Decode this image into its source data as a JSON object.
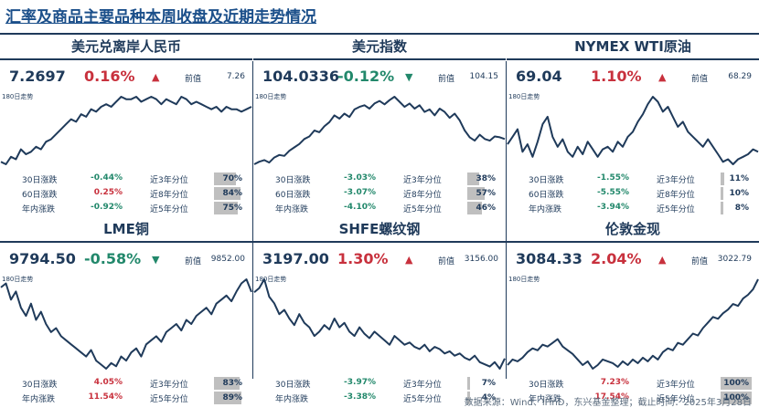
{
  "title": "汇率及商品主要品种本周收盘及近期走势情况",
  "source": "数据来源：Wind、iFinD，东兴基金整理；截止时间：2025年3月28日",
  "colors": {
    "up": "#c8313d",
    "down": "#22886b",
    "line": "#1f3a5a",
    "bar": "#bfbfbf"
  },
  "chart_data": [
    {
      "type": "line",
      "title": "美元兑离岸人民币",
      "last": "7.2697",
      "change": "0.16%",
      "direction": "up",
      "arrow": "▲",
      "prev_label": "前值",
      "prev_value": "7.26",
      "trend_label": "180日走势",
      "values": [
        7.05,
        7.04,
        7.07,
        7.06,
        7.1,
        7.08,
        7.09,
        7.11,
        7.1,
        7.13,
        7.14,
        7.16,
        7.18,
        7.2,
        7.22,
        7.21,
        7.24,
        7.23,
        7.26,
        7.25,
        7.27,
        7.28,
        7.27,
        7.29,
        7.31,
        7.3,
        7.3,
        7.31,
        7.29,
        7.3,
        7.31,
        7.3,
        7.28,
        7.3,
        7.29,
        7.28,
        7.31,
        7.3,
        7.28,
        7.29,
        7.28,
        7.27,
        7.26,
        7.27,
        7.25,
        7.27,
        7.26,
        7.26,
        7.25,
        7.26,
        7.27
      ],
      "stats": [
        {
          "label": "30日涨跌",
          "value": "-0.44%",
          "direction": "down",
          "pct_label": "近3年分位",
          "pct": "70%",
          "pct_num": 70
        },
        {
          "label": "60日涨跌",
          "value": "0.25%",
          "direction": "up",
          "pct_label": "近8年分位",
          "pct": "84%",
          "pct_num": 84
        },
        {
          "label": "年内涨跌",
          "value": "-0.92%",
          "direction": "down",
          "pct_label": "近5年分位",
          "pct": "75%",
          "pct_num": 75
        }
      ]
    },
    {
      "type": "line",
      "title": "美元指数",
      "last": "104.0336",
      "change": "-0.12%",
      "direction": "down",
      "arrow": "▼",
      "prev_label": "前值",
      "prev_value": "104.15",
      "trend_label": "180日走势",
      "values": [
        101.0,
        101.3,
        101.5,
        101.2,
        101.8,
        102.1,
        102.0,
        102.6,
        103.0,
        103.4,
        104.0,
        104.3,
        105.0,
        104.8,
        105.5,
        106.0,
        106.8,
        106.4,
        107.0,
        106.6,
        107.5,
        107.8,
        108.0,
        107.6,
        108.2,
        108.5,
        108.1,
        108.6,
        109.0,
        108.4,
        107.8,
        108.2,
        107.6,
        108.0,
        107.2,
        107.5,
        106.8,
        107.6,
        107.2,
        106.5,
        107.0,
        106.2,
        105.0,
        104.2,
        103.8,
        104.5,
        104.0,
        103.8,
        104.3,
        104.2,
        104.0
      ],
      "stats": [
        {
          "label": "30日涨跌",
          "value": "-3.03%",
          "direction": "down",
          "pct_label": "近3年分位",
          "pct": "38%",
          "pct_num": 38
        },
        {
          "label": "60日涨跌",
          "value": "-3.07%",
          "direction": "down",
          "pct_label": "近8年分位",
          "pct": "57%",
          "pct_num": 57
        },
        {
          "label": "年内涨跌",
          "value": "-4.10%",
          "direction": "down",
          "pct_label": "近5年分位",
          "pct": "46%",
          "pct_num": 46
        }
      ]
    },
    {
      "type": "line",
      "title": "NYMEX WTI原油",
      "last": "69.04",
      "change": "1.10%",
      "direction": "up",
      "arrow": "▲",
      "prev_label": "前值",
      "prev_value": "68.29",
      "trend_label": "180日走势",
      "values": [
        70.5,
        72.0,
        73.5,
        69.0,
        70.5,
        68.0,
        71.0,
        74.5,
        76.0,
        72.0,
        70.0,
        71.5,
        69.0,
        68.0,
        70.0,
        68.5,
        71.0,
        69.5,
        68.0,
        69.5,
        70.0,
        69.0,
        71.0,
        70.0,
        72.0,
        73.0,
        75.0,
        76.5,
        78.5,
        80.0,
        79.0,
        77.0,
        78.0,
        76.0,
        74.0,
        75.0,
        73.0,
        72.0,
        71.0,
        70.0,
        71.5,
        70.0,
        68.5,
        67.0,
        67.5,
        66.5,
        67.5,
        68.0,
        68.5,
        69.5,
        69.0
      ],
      "stats": [
        {
          "label": "30日涨跌",
          "value": "-1.55%",
          "direction": "down",
          "pct_label": "近3年分位",
          "pct": "11%",
          "pct_num": 11
        },
        {
          "label": "60日涨跌",
          "value": "-5.55%",
          "direction": "down",
          "pct_label": "近8年分位",
          "pct": "10%",
          "pct_num": 10
        },
        {
          "label": "年内涨跌",
          "value": "-3.94%",
          "direction": "down",
          "pct_label": "近5年分位",
          "pct": "8%",
          "pct_num": 8
        }
      ]
    },
    {
      "type": "line",
      "title": "LME铜",
      "last": "9794.50",
      "change": "-0.58%",
      "direction": "down",
      "arrow": "▼",
      "prev_label": "前值",
      "prev_value": "9852.00",
      "trend_label": "180日走势",
      "values": [
        9850,
        9900,
        9700,
        9800,
        9600,
        9500,
        9650,
        9450,
        9550,
        9400,
        9300,
        9350,
        9250,
        9200,
        9150,
        9100,
        9050,
        9000,
        9080,
        8950,
        8900,
        8850,
        8920,
        8880,
        9000,
        8950,
        9050,
        9100,
        9000,
        9150,
        9200,
        9250,
        9180,
        9300,
        9350,
        9400,
        9320,
        9450,
        9400,
        9500,
        9550,
        9600,
        9520,
        9650,
        9700,
        9750,
        9680,
        9800,
        9900,
        9950,
        9794
      ],
      "stats": [
        {
          "label": "30日涨跌",
          "value": "4.05%",
          "direction": "up",
          "pct_label": "近3年分位",
          "pct": "83%",
          "pct_num": 83
        },
        {
          "label": "年内涨跌",
          "value": "11.54%",
          "direction": "up",
          "pct_label": "近5年分位",
          "pct": "89%",
          "pct_num": 89
        }
      ]
    },
    {
      "type": "line",
      "title": "SHFE螺纹钢",
      "last": "3197.00",
      "change": "1.30%",
      "direction": "up",
      "arrow": "▲",
      "prev_label": "前值",
      "prev_value": "3156.00",
      "trend_label": "180日走势",
      "values": [
        3500,
        3520,
        3560,
        3480,
        3450,
        3400,
        3420,
        3380,
        3350,
        3400,
        3360,
        3340,
        3300,
        3320,
        3350,
        3330,
        3380,
        3340,
        3360,
        3320,
        3300,
        3340,
        3310,
        3290,
        3320,
        3300,
        3280,
        3260,
        3300,
        3280,
        3260,
        3270,
        3250,
        3240,
        3260,
        3230,
        3250,
        3240,
        3220,
        3230,
        3210,
        3220,
        3200,
        3190,
        3210,
        3180,
        3170,
        3160,
        3180,
        3150,
        3197
      ],
      "stats": [
        {
          "label": "30日涨跌",
          "value": "-3.97%",
          "direction": "down",
          "pct_label": "近3年分位",
          "pct": "7%",
          "pct_num": 7
        },
        {
          "label": "年内涨跌",
          "value": "-3.38%",
          "direction": "down",
          "pct_label": "近5年分位",
          "pct": "4%",
          "pct_num": 4
        }
      ]
    },
    {
      "type": "line",
      "title": "伦敦金现",
      "last": "3084.33",
      "change": "2.04%",
      "direction": "up",
      "arrow": "▲",
      "prev_label": "前值",
      "prev_value": "3022.79",
      "trend_label": "180日走势",
      "values": [
        2620,
        2650,
        2640,
        2660,
        2690,
        2710,
        2700,
        2730,
        2720,
        2740,
        2760,
        2720,
        2700,
        2680,
        2650,
        2620,
        2640,
        2600,
        2620,
        2650,
        2640,
        2630,
        2610,
        2640,
        2620,
        2650,
        2630,
        2660,
        2640,
        2670,
        2650,
        2690,
        2710,
        2700,
        2740,
        2730,
        2760,
        2790,
        2780,
        2820,
        2850,
        2880,
        2870,
        2900,
        2920,
        2950,
        2940,
        2980,
        3000,
        3030,
        3084
      ],
      "stats": [
        {
          "label": "30日涨跌",
          "value": "7.23%",
          "direction": "up",
          "pct_label": "近3年分位",
          "pct": "100%",
          "pct_num": 100
        },
        {
          "label": "年内涨跌",
          "value": "17.54%",
          "direction": "up",
          "pct_label": "近5年分位",
          "pct": "100%",
          "pct_num": 100
        }
      ]
    }
  ]
}
